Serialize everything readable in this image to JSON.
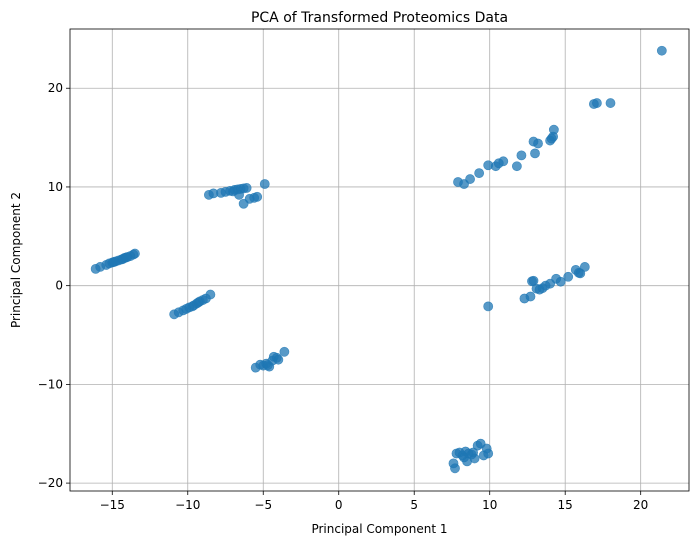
{
  "chart_data": {
    "type": "scatter",
    "title": "PCA of Transformed Proteomics Data",
    "xlabel": "Principal Component 1",
    "ylabel": "Principal Component 2",
    "xlim": [
      -17.8,
      23.2
    ],
    "ylim": [
      -20.8,
      26.0
    ],
    "xticks": [
      -15,
      -10,
      -5,
      0,
      5,
      10,
      15,
      20
    ],
    "yticks": [
      -20,
      -10,
      0,
      10,
      20
    ],
    "xtick_labels": [
      "−15",
      "−10",
      "−5",
      "0",
      "5",
      "10",
      "15",
      "20"
    ],
    "ytick_labels": [
      "−20",
      "−10",
      "0",
      "10",
      "20"
    ],
    "grid": true,
    "marker_color": "#1f77b4",
    "marker_alpha": 0.75,
    "series": [
      {
        "points": [
          [
            -16.1,
            1.7
          ],
          [
            -15.8,
            1.9
          ],
          [
            -15.4,
            2.1
          ],
          [
            -15.2,
            2.25
          ],
          [
            -15.0,
            2.35
          ],
          [
            -14.8,
            2.45
          ],
          [
            -14.6,
            2.55
          ],
          [
            -14.4,
            2.65
          ],
          [
            -14.2,
            2.8
          ],
          [
            -14.0,
            2.9
          ],
          [
            -13.8,
            3.0
          ],
          [
            -13.6,
            3.15
          ],
          [
            -13.5,
            3.25
          ],
          [
            -14.9,
            2.4
          ],
          [
            -14.3,
            2.7
          ],
          [
            -14.1,
            2.85
          ],
          [
            -10.9,
            -2.9
          ],
          [
            -10.6,
            -2.7
          ],
          [
            -10.3,
            -2.5
          ],
          [
            -10.1,
            -2.35
          ],
          [
            -9.9,
            -2.2
          ],
          [
            -9.6,
            -2.0
          ],
          [
            -9.4,
            -1.8
          ],
          [
            -9.2,
            -1.6
          ],
          [
            -9.0,
            -1.45
          ],
          [
            -8.8,
            -1.3
          ],
          [
            -8.5,
            -0.9
          ],
          [
            -9.7,
            -2.1
          ],
          [
            -9.3,
            -1.7
          ],
          [
            -8.6,
            9.2
          ],
          [
            -8.3,
            9.35
          ],
          [
            -7.8,
            9.4
          ],
          [
            -7.5,
            9.5
          ],
          [
            -7.2,
            9.6
          ],
          [
            -6.9,
            9.7
          ],
          [
            -6.7,
            9.75
          ],
          [
            -6.5,
            9.8
          ],
          [
            -6.3,
            9.85
          ],
          [
            -6.1,
            9.9
          ],
          [
            -6.6,
            9.2
          ],
          [
            -6.3,
            8.3
          ],
          [
            -5.9,
            8.8
          ],
          [
            -5.6,
            8.9
          ],
          [
            -5.4,
            9.0
          ],
          [
            -4.9,
            10.3
          ],
          [
            -7.0,
            9.55
          ],
          [
            -5.5,
            -8.3
          ],
          [
            -5.2,
            -8.0
          ],
          [
            -5.0,
            -8.1
          ],
          [
            -4.8,
            -7.9
          ],
          [
            -4.6,
            -8.2
          ],
          [
            -4.4,
            -7.6
          ],
          [
            -4.3,
            -7.2
          ],
          [
            -4.1,
            -7.3
          ],
          [
            -4.0,
            -7.5
          ],
          [
            -3.6,
            -6.7
          ],
          [
            -4.7,
            -8.05
          ],
          [
            7.9,
            10.5
          ],
          [
            8.3,
            10.3
          ],
          [
            8.7,
            10.8
          ],
          [
            9.3,
            11.4
          ],
          [
            9.9,
            12.2
          ],
          [
            10.4,
            12.1
          ],
          [
            10.6,
            12.4
          ],
          [
            10.9,
            12.6
          ],
          [
            11.8,
            12.1
          ],
          [
            12.1,
            13.2
          ],
          [
            12.9,
            14.6
          ],
          [
            13.0,
            13.4
          ],
          [
            13.2,
            14.4
          ],
          [
            14.0,
            14.7
          ],
          [
            14.1,
            14.9
          ],
          [
            14.2,
            15.1
          ],
          [
            14.25,
            15.8
          ],
          [
            16.9,
            18.4
          ],
          [
            17.1,
            18.5
          ],
          [
            18.0,
            18.5
          ],
          [
            21.4,
            23.8
          ],
          [
            9.9,
            -2.1
          ],
          [
            12.3,
            -1.3
          ],
          [
            12.7,
            -1.1
          ],
          [
            12.8,
            0.45
          ],
          [
            12.9,
            0.5
          ],
          [
            13.1,
            -0.3
          ],
          [
            13.3,
            -0.4
          ],
          [
            13.5,
            -0.25
          ],
          [
            13.7,
            0.0
          ],
          [
            14.0,
            0.2
          ],
          [
            14.4,
            0.7
          ],
          [
            14.7,
            0.4
          ],
          [
            15.2,
            0.9
          ],
          [
            15.7,
            1.6
          ],
          [
            15.9,
            1.3
          ],
          [
            16.0,
            1.25
          ],
          [
            16.3,
            1.9
          ],
          [
            7.6,
            -18.0
          ],
          [
            7.7,
            -18.5
          ],
          [
            7.8,
            -17.0
          ],
          [
            8.0,
            -16.9
          ],
          [
            8.2,
            -17.2
          ],
          [
            8.4,
            -16.8
          ],
          [
            8.5,
            -17.8
          ],
          [
            8.6,
            -17.0
          ],
          [
            8.8,
            -17.1
          ],
          [
            9.0,
            -17.5
          ],
          [
            9.2,
            -16.2
          ],
          [
            9.4,
            -16.0
          ],
          [
            9.6,
            -17.2
          ],
          [
            9.8,
            -16.5
          ],
          [
            9.9,
            -17.0
          ],
          [
            8.3,
            -17.4
          ],
          [
            8.9,
            -16.9
          ]
        ]
      }
    ]
  }
}
